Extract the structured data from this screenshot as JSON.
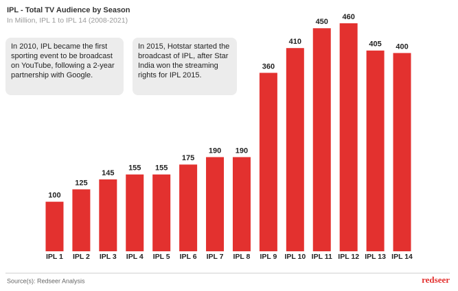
{
  "chart_data": {
    "type": "bar",
    "title": "IPL - Total TV Audience by Season",
    "subtitle": "In Million, IPL 1 to IPL 14 (2008-2021)",
    "categories": [
      "IPL 1",
      "IPL 2",
      "IPL 3",
      "IPL 4",
      "IPL 5",
      "IPL 6",
      "IPL 7",
      "IPL 8",
      "IPL 9",
      "IPL 10",
      "IPL 11",
      "IPL 12",
      "IPL 13",
      "IPL 14"
    ],
    "values": [
      100,
      125,
      145,
      155,
      155,
      175,
      190,
      190,
      360,
      410,
      450,
      460,
      405,
      400
    ],
    "color": "#e3312f",
    "annotations": [
      "In 2010, IPL became the first sporting event to be broadcast on YouTube, following a 2-year partnership with Google.",
      "In 2015, Hotstar started the broadcast of IPL, after Star India won the streaming rights for IPL 2015."
    ],
    "source": "Source(s): Redseer Analysis",
    "logo": "redseer"
  }
}
